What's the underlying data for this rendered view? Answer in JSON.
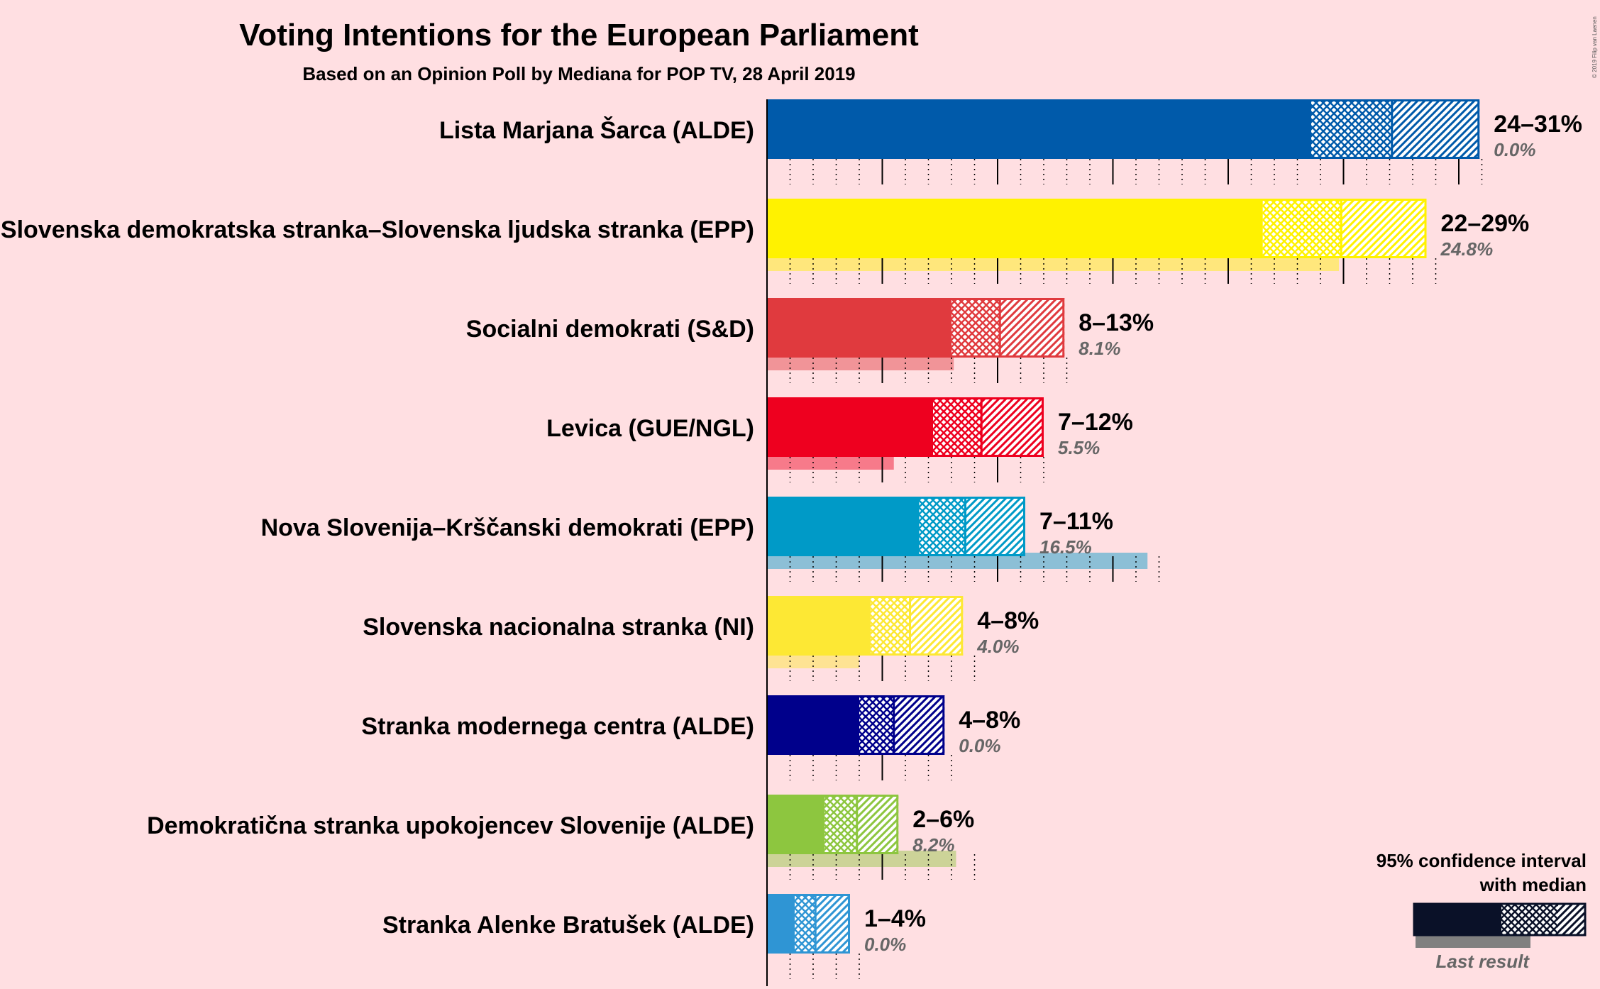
{
  "title": "Voting Intentions for the European Parliament",
  "subtitle": "Based on an Opinion Poll by Mediana for POP TV, 28 April 2019",
  "copyright": "© 2019 Filip van Laenen",
  "legend": {
    "line1": "95% confidence interval",
    "line2": "with median",
    "last_result": "Last result",
    "color": "#0a1128"
  },
  "chart_data": {
    "type": "bar",
    "orientation": "horizontal",
    "xlim": [
      0,
      31
    ],
    "categories": [
      "Lista Marjana Šarca (ALDE)",
      "Slovenska demokratska stranka–Slovenska ljudska stranka (EPP)",
      "Socialni demokrati (S&D)",
      "Levica (GUE/NGL)",
      "Nova Slovenija–Krščanski demokrati (EPP)",
      "Slovenska nacionalna stranka (NI)",
      "Stranka modernega centra (ALDE)",
      "Demokratična stranka upokojencev Slovenije (ALDE)",
      "Stranka Alenke Bratušek (ALDE)"
    ],
    "parties": [
      {
        "name": "Lista Marjana Šarca (ALDE)",
        "color": "#005aaa",
        "ci_low": 23.6,
        "median": 27.1,
        "ci_high": 30.9,
        "range_label": "24–31%",
        "last": 0.0,
        "last_label": "0.0%"
      },
      {
        "name": "Slovenska demokratska stranka–Slovenska ljudska stranka (EPP)",
        "color": "#fff200",
        "ci_low": 21.5,
        "median": 24.9,
        "ci_high": 28.6,
        "range_label": "22–29%",
        "last": 24.8,
        "last_label": "24.8%"
      },
      {
        "name": "Socialni demokrati (S&D)",
        "color": "#e03a3e",
        "ci_low": 8.0,
        "median": 10.1,
        "ci_high": 12.9,
        "range_label": "8–13%",
        "last": 8.1,
        "last_label": "8.1%"
      },
      {
        "name": "Levica (GUE/NGL)",
        "color": "#ee001f",
        "ci_low": 7.2,
        "median": 9.3,
        "ci_high": 12.0,
        "range_label": "7–12%",
        "last": 5.5,
        "last_label": "5.5%"
      },
      {
        "name": "Nova Slovenija–Krščanski demokrati (EPP)",
        "color": "#009ac7",
        "ci_low": 6.6,
        "median": 8.6,
        "ci_high": 11.2,
        "range_label": "7–11%",
        "last": 16.5,
        "last_label": "16.5%"
      },
      {
        "name": "Slovenska nacionalna stranka (NI)",
        "color": "#fde834",
        "ci_low": 4.5,
        "median": 6.2,
        "ci_high": 8.5,
        "range_label": "4–8%",
        "last": 4.0,
        "last_label": "4.0%"
      },
      {
        "name": "Stranka modernega centra (ALDE)",
        "color": "#00008b",
        "ci_low": 4.0,
        "median": 5.5,
        "ci_high": 7.7,
        "range_label": "4–8%",
        "last": 0.0,
        "last_label": "0.0%"
      },
      {
        "name": "Demokratična stranka upokojencev Slovenije (ALDE)",
        "color": "#8dc63f",
        "ci_low": 2.5,
        "median": 3.9,
        "ci_high": 5.7,
        "range_label": "2–6%",
        "last": 8.2,
        "last_label": "8.2%"
      },
      {
        "name": "Stranka Alenke Bratušek (ALDE)",
        "color": "#2f95d4",
        "ci_low": 1.2,
        "median": 2.1,
        "ci_high": 3.6,
        "range_label": "1–4%",
        "last": 0.0,
        "last_label": "0.0%"
      }
    ]
  }
}
